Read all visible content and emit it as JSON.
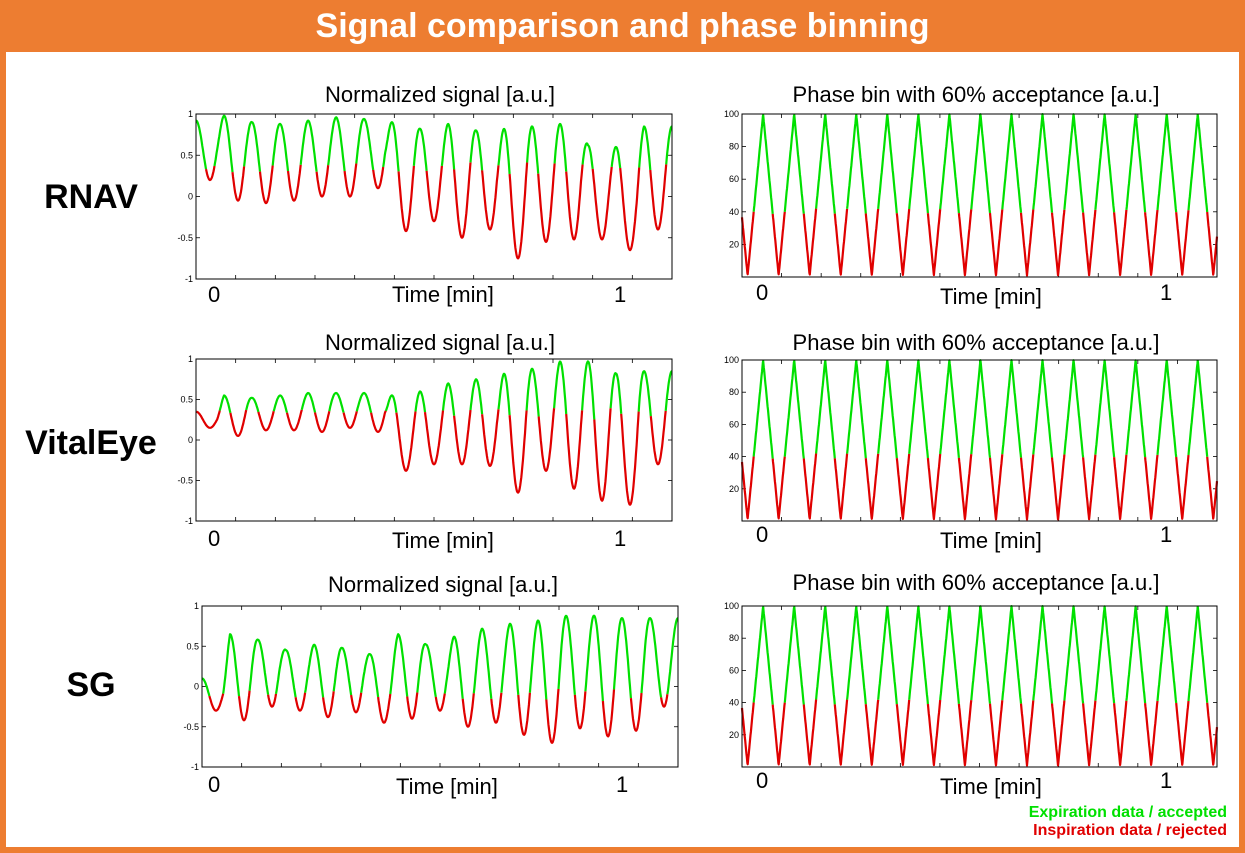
{
  "header": {
    "title": "Signal comparison and phase binning"
  },
  "colors": {
    "accepted": "#00E000",
    "rejected": "#E00000",
    "frame": "#ED7D31"
  },
  "legend": {
    "accepted": "Expiration data / accepted",
    "rejected": "Inspiration data / rejected"
  },
  "rows": [
    {
      "label": "RNAV"
    },
    {
      "label": "VitalEye"
    },
    {
      "label": "SG"
    }
  ],
  "chart_data": [
    {
      "type": "line",
      "row": "RNAV",
      "kind": "signal",
      "title": "Normalized signal [a.u.]",
      "xlabel": "Time [min]",
      "ylabel": "",
      "ylim": [
        -1,
        1
      ],
      "yticks": [
        "1",
        "0.5",
        "0",
        "-0.5",
        "-1"
      ],
      "xticks": [
        "0",
        "1"
      ],
      "threshold": 0.35,
      "cycles": [
        [
          0.92,
          0.2
        ],
        [
          0.98,
          -0.05
        ],
        [
          0.9,
          -0.08
        ],
        [
          0.88,
          -0.05
        ],
        [
          0.92,
          0.0
        ],
        [
          0.96,
          0.0
        ],
        [
          0.94,
          0.1
        ],
        [
          0.9,
          -0.42
        ],
        [
          0.82,
          -0.3
        ],
        [
          0.88,
          -0.5
        ],
        [
          0.8,
          -0.4
        ],
        [
          0.82,
          -0.75
        ],
        [
          0.85,
          -0.55
        ],
        [
          0.88,
          -0.52
        ],
        [
          0.62,
          -0.52
        ],
        [
          0.6,
          -0.65
        ],
        [
          0.85,
          -0.4
        ]
      ]
    },
    {
      "type": "line",
      "row": "RNAV",
      "kind": "phase",
      "title": "Phase bin with 60% acceptance [a.u.]",
      "xlabel": "Time [min]",
      "ylabel": "",
      "ylim": [
        0,
        100
      ],
      "yticks": [
        "100",
        "80",
        "60",
        "40",
        "20"
      ],
      "xticks": [
        "0",
        "1"
      ],
      "threshold": 40,
      "cycles_count": 15
    },
    {
      "type": "line",
      "row": "VitalEye",
      "kind": "signal",
      "title": "Normalized signal [a.u.]",
      "xlabel": "Time [min]",
      "ylabel": "",
      "ylim": [
        -1,
        1
      ],
      "yticks": [
        "1",
        "0.5",
        "0",
        "-0.5",
        "-1"
      ],
      "xticks": [
        "0",
        "1"
      ],
      "threshold": 0.35,
      "cycles": [
        [
          0.35,
          0.15
        ],
        [
          0.55,
          0.05
        ],
        [
          0.52,
          0.12
        ],
        [
          0.55,
          0.12
        ],
        [
          0.58,
          0.1
        ],
        [
          0.58,
          0.15
        ],
        [
          0.58,
          0.1
        ],
        [
          0.55,
          -0.38
        ],
        [
          0.6,
          -0.3
        ],
        [
          0.7,
          -0.3
        ],
        [
          0.75,
          -0.32
        ],
        [
          0.82,
          -0.65
        ],
        [
          0.88,
          -0.38
        ],
        [
          0.97,
          -0.6
        ],
        [
          0.97,
          -0.75
        ],
        [
          0.82,
          -0.8
        ],
        [
          0.85,
          -0.3
        ]
      ]
    },
    {
      "type": "line",
      "row": "VitalEye",
      "kind": "phase",
      "title": "Phase bin with 60% acceptance [a.u.]",
      "xlabel": "Time [min]",
      "ylabel": "",
      "ylim": [
        0,
        100
      ],
      "yticks": [
        "100",
        "80",
        "60",
        "40",
        "20"
      ],
      "xticks": [
        "0",
        "1"
      ],
      "threshold": 40,
      "cycles_count": 15
    },
    {
      "type": "line",
      "row": "SG",
      "kind": "signal",
      "title": "Normalized signal [a.u.]",
      "xlabel": "Time [min]",
      "ylabel": "",
      "ylim": [
        -1,
        1
      ],
      "yticks": [
        "1",
        "0.5",
        "0",
        "-0.5",
        "-1"
      ],
      "xticks": [
        "0",
        "1"
      ],
      "threshold": -0.1,
      "cycles": [
        [
          0.1,
          -0.3
        ],
        [
          0.65,
          -0.42
        ],
        [
          0.58,
          -0.25
        ],
        [
          0.45,
          -0.3
        ],
        [
          0.52,
          -0.38
        ],
        [
          0.48,
          -0.32
        ],
        [
          0.4,
          -0.45
        ],
        [
          0.65,
          -0.4
        ],
        [
          0.52,
          -0.3
        ],
        [
          0.62,
          -0.5
        ],
        [
          0.72,
          -0.45
        ],
        [
          0.78,
          -0.6
        ],
        [
          0.82,
          -0.7
        ],
        [
          0.88,
          -0.52
        ],
        [
          0.88,
          -0.62
        ],
        [
          0.85,
          -0.55
        ],
        [
          0.85,
          -0.25
        ]
      ]
    },
    {
      "type": "line",
      "row": "SG",
      "kind": "phase",
      "title": "Phase bin with 60% acceptance [a.u.]",
      "xlabel": "Time [min]",
      "ylabel": "",
      "ylim": [
        0,
        100
      ],
      "yticks": [
        "100",
        "80",
        "60",
        "40",
        "20"
      ],
      "xticks": [
        "0",
        "1"
      ],
      "threshold": 40,
      "cycles_count": 15
    }
  ]
}
